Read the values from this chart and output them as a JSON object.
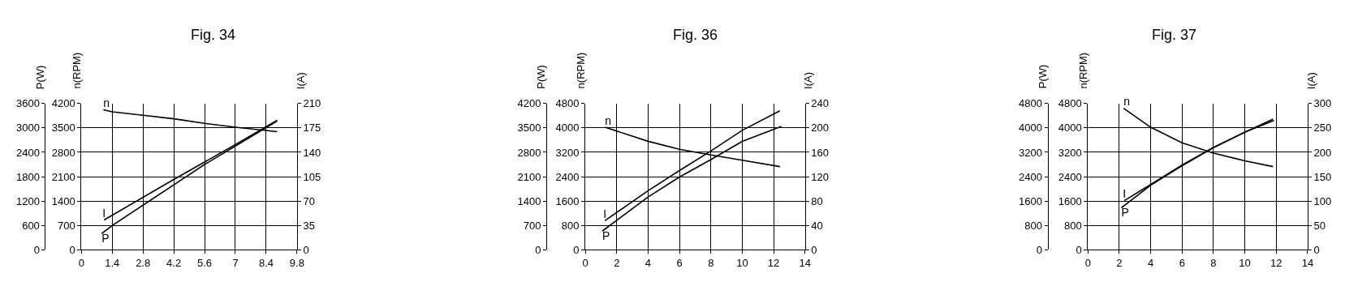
{
  "chart_data": [
    {
      "type": "line",
      "title": "Fig. 34",
      "ylabel": "P(W)",
      "y2label": "n(RPM)",
      "y3label": "I(A)",
      "legend": false,
      "grid": true,
      "xlim": [
        0,
        9.8
      ],
      "xticks": [
        0,
        1.4,
        2.8,
        4.2,
        5.6,
        7,
        8.4,
        9.8
      ],
      "ylim": [
        0,
        3600
      ],
      "yticks": [
        0,
        600,
        1200,
        1800,
        2400,
        3000,
        3600
      ],
      "y2lim": [
        0,
        4200
      ],
      "y2ticks": [
        0,
        700,
        1400,
        2100,
        2800,
        3500,
        4200
      ],
      "y3lim": [
        0,
        210
      ],
      "y3ticks": [
        0,
        35,
        70,
        105,
        140,
        175,
        210
      ],
      "series": [
        {
          "name": "n",
          "color": "#000000",
          "axis": "y2",
          "x": [
            1.0,
            1.4,
            2.8,
            4.2,
            5.6,
            7.0,
            8.9
          ],
          "values": [
            4020,
            3960,
            3860,
            3760,
            3630,
            3520,
            3390
          ]
        },
        {
          "name": "I",
          "color": "#000000",
          "axis": "y3",
          "x": [
            1.03,
            4.2,
            7.0,
            8.9
          ],
          "values": [
            43,
            101,
            151,
            186
          ]
        },
        {
          "name": "P",
          "color": "#000000",
          "x": [
            0.92,
            1.4,
            2.8,
            4.2,
            5.6,
            7.0,
            8.9
          ],
          "values": [
            400,
            600,
            1100,
            1600,
            2100,
            2550,
            3170
          ]
        }
      ]
    },
    {
      "type": "line",
      "title": "Fig. 36",
      "ylabel": "P(W)",
      "y2label": "n(RPM)",
      "y3label": "I(A)",
      "legend": false,
      "grid": true,
      "xlim": [
        0,
        14
      ],
      "xticks": [
        0,
        2,
        4,
        6,
        8,
        10,
        12,
        14
      ],
      "ylim": [
        0,
        4200
      ],
      "yticks": [
        0,
        700,
        1400,
        2100,
        2800,
        3500,
        4200
      ],
      "y2lim": [
        0,
        4800
      ],
      "y2ticks": [
        0,
        800,
        1600,
        2400,
        3200,
        4000,
        4800
      ],
      "y3lim": [
        0,
        240
      ],
      "y3ticks": [
        0,
        40,
        80,
        120,
        160,
        200,
        240
      ],
      "series": [
        {
          "name": "n",
          "color": "#000000",
          "axis": "y2",
          "x": [
            1.25,
            4,
            6,
            8,
            10,
            12.4
          ],
          "values": [
            4020,
            3560,
            3300,
            3110,
            2940,
            2730
          ]
        },
        {
          "name": "I",
          "color": "#000000",
          "axis": "y3",
          "x": [
            1.25,
            4,
            6,
            8,
            10,
            12.4
          ],
          "values": [
            48,
            97,
            130,
            162,
            196,
            228
          ]
        },
        {
          "name": "P",
          "color": "#000000",
          "x": [
            1.08,
            4,
            6,
            8,
            10,
            12.5
          ],
          "values": [
            540,
            1520,
            2090,
            2590,
            3110,
            3540
          ]
        }
      ]
    },
    {
      "type": "line",
      "title": "Fig. 37",
      "ylabel": "P(W)",
      "y2label": "n(RPM)",
      "y3label": "I(A)",
      "legend": false,
      "grid": true,
      "xlim": [
        0,
        14
      ],
      "xticks": [
        0,
        2,
        4,
        6,
        8,
        10,
        12,
        14
      ],
      "ylim": [
        0,
        4800
      ],
      "yticks": [
        0,
        800,
        1600,
        2400,
        3200,
        4000,
        4800
      ],
      "y2lim": [
        0,
        4800
      ],
      "y2ticks": [
        0,
        800,
        1600,
        2400,
        3200,
        4000,
        4800
      ],
      "y3lim": [
        0,
        300
      ],
      "y3ticks": [
        0,
        50,
        100,
        150,
        200,
        250,
        300
      ],
      "series": [
        {
          "name": "n",
          "color": "#000000",
          "axis": "y2",
          "x": [
            2.27,
            4,
            6,
            8,
            10,
            11.8
          ],
          "values": [
            4640,
            4020,
            3510,
            3170,
            2920,
            2730
          ]
        },
        {
          "name": "I",
          "color": "#000000",
          "axis": "y3",
          "x": [
            2.32,
            4,
            6,
            8,
            10,
            11.8
          ],
          "values": [
            101,
            134,
            174,
            210,
            241,
            268
          ]
        },
        {
          "name": "P",
          "color": "#000000",
          "x": [
            2.13,
            4,
            6,
            8,
            10,
            11.85
          ],
          "values": [
            1380,
            2120,
            2760,
            3350,
            3860,
            4240
          ]
        }
      ]
    }
  ]
}
